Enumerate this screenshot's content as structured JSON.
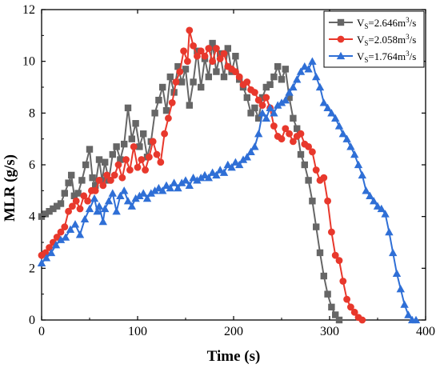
{
  "chart_data": {
    "type": "line",
    "xlabel": "Time (s)",
    "ylabel": "MLR (g/s)",
    "xlim": [
      0,
      400
    ],
    "ylim": [
      0,
      12
    ],
    "x_ticks": [
      "0",
      "100",
      "200",
      "300",
      "400"
    ],
    "y_ticks": [
      "0",
      "2",
      "4",
      "6",
      "8",
      "10",
      "12"
    ],
    "grid": false,
    "legend_position": "top-right",
    "series": [
      {
        "name": "Vs=2.646m³/s",
        "legend": {
          "main": "V",
          "sub": "S",
          "rest": "=2.646m",
          "sup": "3",
          "tail": "/s"
        },
        "color": "#666666",
        "marker": "square",
        "points": [
          [
            0,
            4.0
          ],
          [
            4,
            4.1
          ],
          [
            8,
            4.2
          ],
          [
            12,
            4.3
          ],
          [
            16,
            4.4
          ],
          [
            20,
            4.5
          ],
          [
            24,
            4.9
          ],
          [
            28,
            5.3
          ],
          [
            31,
            5.6
          ],
          [
            34,
            4.8
          ],
          [
            38,
            4.9
          ],
          [
            42,
            5.4
          ],
          [
            46,
            6.0
          ],
          [
            50,
            6.6
          ],
          [
            53,
            5.5
          ],
          [
            56,
            5.2
          ],
          [
            60,
            6.2
          ],
          [
            63,
            5.4
          ],
          [
            66,
            6.1
          ],
          [
            70,
            5.4
          ],
          [
            74,
            6.4
          ],
          [
            78,
            6.7
          ],
          [
            82,
            6.2
          ],
          [
            86,
            6.8
          ],
          [
            90,
            8.2
          ],
          [
            94,
            7.0
          ],
          [
            98,
            7.6
          ],
          [
            102,
            6.7
          ],
          [
            106,
            7.2
          ],
          [
            110,
            6.3
          ],
          [
            114,
            6.9
          ],
          [
            118,
            8.0
          ],
          [
            122,
            8.5
          ],
          [
            126,
            9.0
          ],
          [
            130,
            8.1
          ],
          [
            134,
            9.4
          ],
          [
            138,
            8.8
          ],
          [
            142,
            9.8
          ],
          [
            146,
            9.2
          ],
          [
            150,
            9.7
          ],
          [
            154,
            8.3
          ],
          [
            158,
            9.2
          ],
          [
            162,
            10.4
          ],
          [
            166,
            9.0
          ],
          [
            170,
            10.1
          ],
          [
            174,
            9.4
          ],
          [
            178,
            10.7
          ],
          [
            182,
            9.6
          ],
          [
            186,
            10.3
          ],
          [
            190,
            9.4
          ],
          [
            194,
            10.5
          ],
          [
            198,
            9.6
          ],
          [
            202,
            10.2
          ],
          [
            206,
            9.3
          ],
          [
            210,
            9.0
          ],
          [
            214,
            8.6
          ],
          [
            218,
            8.0
          ],
          [
            222,
            8.2
          ],
          [
            226,
            7.8
          ],
          [
            230,
            8.6
          ],
          [
            234,
            9.0
          ],
          [
            238,
            9.1
          ],
          [
            242,
            9.4
          ],
          [
            246,
            9.8
          ],
          [
            250,
            9.3
          ],
          [
            254,
            9.7
          ],
          [
            258,
            8.6
          ],
          [
            262,
            7.8
          ],
          [
            266,
            7.4
          ],
          [
            270,
            6.4
          ],
          [
            274,
            6.0
          ],
          [
            278,
            5.4
          ],
          [
            282,
            4.6
          ],
          [
            286,
            3.6
          ],
          [
            290,
            2.6
          ],
          [
            294,
            1.7
          ],
          [
            298,
            1.0
          ],
          [
            302,
            0.5
          ],
          [
            306,
            0.2
          ],
          [
            310,
            0.0
          ]
        ]
      },
      {
        "name": "Vs=2.058m³/s",
        "legend": {
          "main": "V",
          "sub": "S",
          "rest": "=2.058m",
          "sup": "3",
          "tail": "/s"
        },
        "color": "#e8382c",
        "marker": "circle",
        "points": [
          [
            0,
            2.5
          ],
          [
            4,
            2.6
          ],
          [
            8,
            2.8
          ],
          [
            12,
            3.0
          ],
          [
            16,
            3.2
          ],
          [
            20,
            3.4
          ],
          [
            24,
            3.6
          ],
          [
            28,
            4.2
          ],
          [
            32,
            4.4
          ],
          [
            36,
            4.6
          ],
          [
            40,
            4.3
          ],
          [
            44,
            4.8
          ],
          [
            48,
            4.6
          ],
          [
            52,
            5.0
          ],
          [
            56,
            5.0
          ],
          [
            60,
            5.4
          ],
          [
            64,
            5.2
          ],
          [
            68,
            5.6
          ],
          [
            72,
            5.4
          ],
          [
            76,
            5.6
          ],
          [
            80,
            6.0
          ],
          [
            84,
            5.5
          ],
          [
            88,
            6.2
          ],
          [
            92,
            5.8
          ],
          [
            96,
            6.7
          ],
          [
            100,
            5.9
          ],
          [
            104,
            6.2
          ],
          [
            108,
            5.8
          ],
          [
            112,
            6.3
          ],
          [
            116,
            6.9
          ],
          [
            120,
            6.4
          ],
          [
            124,
            6.1
          ],
          [
            128,
            7.2
          ],
          [
            132,
            7.8
          ],
          [
            136,
            8.4
          ],
          [
            140,
            9.2
          ],
          [
            144,
            9.6
          ],
          [
            148,
            10.4
          ],
          [
            152,
            10.0
          ],
          [
            154,
            11.2
          ],
          [
            158,
            10.6
          ],
          [
            162,
            10.2
          ],
          [
            166,
            10.4
          ],
          [
            170,
            10.2
          ],
          [
            174,
            10.5
          ],
          [
            178,
            10.0
          ],
          [
            182,
            10.5
          ],
          [
            186,
            10.1
          ],
          [
            190,
            10.3
          ],
          [
            194,
            9.8
          ],
          [
            198,
            9.7
          ],
          [
            202,
            9.6
          ],
          [
            206,
            9.4
          ],
          [
            210,
            9.1
          ],
          [
            214,
            9.2
          ],
          [
            218,
            8.9
          ],
          [
            222,
            8.8
          ],
          [
            226,
            8.5
          ],
          [
            230,
            8.3
          ],
          [
            234,
            8.6
          ],
          [
            238,
            8.2
          ],
          [
            242,
            7.5
          ],
          [
            246,
            7.1
          ],
          [
            250,
            7.0
          ],
          [
            254,
            7.4
          ],
          [
            258,
            7.2
          ],
          [
            262,
            6.9
          ],
          [
            266,
            7.1
          ],
          [
            270,
            7.2
          ],
          [
            274,
            6.8
          ],
          [
            278,
            6.7
          ],
          [
            282,
            6.5
          ],
          [
            286,
            5.8
          ],
          [
            290,
            5.4
          ],
          [
            294,
            5.5
          ],
          [
            298,
            4.6
          ],
          [
            302,
            3.4
          ],
          [
            306,
            2.5
          ],
          [
            310,
            2.3
          ],
          [
            314,
            1.5
          ],
          [
            318,
            0.8
          ],
          [
            322,
            0.5
          ],
          [
            326,
            0.3
          ],
          [
            330,
            0.1
          ],
          [
            334,
            0.0
          ]
        ]
      },
      {
        "name": "Vs=1.764m³/s",
        "legend": {
          "main": "V",
          "sub": "S",
          "rest": "=1.764m",
          "sup": "3",
          "tail": "/s"
        },
        "color": "#2f6fd6",
        "marker": "triangle",
        "points": [
          [
            0,
            2.2
          ],
          [
            5,
            2.4
          ],
          [
            10,
            2.6
          ],
          [
            15,
            2.9
          ],
          [
            20,
            3.1
          ],
          [
            25,
            3.2
          ],
          [
            30,
            3.5
          ],
          [
            35,
            3.7
          ],
          [
            40,
            3.3
          ],
          [
            45,
            3.9
          ],
          [
            50,
            4.3
          ],
          [
            55,
            4.7
          ],
          [
            58,
            4.2
          ],
          [
            60,
            4.4
          ],
          [
            64,
            3.8
          ],
          [
            66,
            4.3
          ],
          [
            70,
            4.6
          ],
          [
            74,
            4.9
          ],
          [
            78,
            4.2
          ],
          [
            82,
            4.8
          ],
          [
            86,
            5.0
          ],
          [
            90,
            4.6
          ],
          [
            94,
            4.4
          ],
          [
            98,
            4.7
          ],
          [
            102,
            4.8
          ],
          [
            106,
            4.9
          ],
          [
            110,
            4.7
          ],
          [
            114,
            4.9
          ],
          [
            118,
            5.0
          ],
          [
            122,
            5.1
          ],
          [
            126,
            5.0
          ],
          [
            130,
            5.2
          ],
          [
            134,
            5.1
          ],
          [
            138,
            5.3
          ],
          [
            142,
            5.1
          ],
          [
            146,
            5.3
          ],
          [
            150,
            5.4
          ],
          [
            154,
            5.2
          ],
          [
            158,
            5.5
          ],
          [
            162,
            5.4
          ],
          [
            166,
            5.5
          ],
          [
            170,
            5.6
          ],
          [
            174,
            5.5
          ],
          [
            178,
            5.7
          ],
          [
            182,
            5.6
          ],
          [
            186,
            5.8
          ],
          [
            190,
            5.7
          ],
          [
            194,
            6.0
          ],
          [
            198,
            5.9
          ],
          [
            202,
            6.1
          ],
          [
            206,
            6.0
          ],
          [
            210,
            6.2
          ],
          [
            214,
            6.3
          ],
          [
            218,
            6.5
          ],
          [
            222,
            6.7
          ],
          [
            226,
            7.2
          ],
          [
            230,
            8.0
          ],
          [
            234,
            7.8
          ],
          [
            238,
            8.2
          ],
          [
            242,
            8.0
          ],
          [
            246,
            8.3
          ],
          [
            250,
            8.4
          ],
          [
            254,
            8.5
          ],
          [
            258,
            8.8
          ],
          [
            262,
            9.0
          ],
          [
            266,
            9.3
          ],
          [
            270,
            9.6
          ],
          [
            274,
            9.8
          ],
          [
            278,
            9.7
          ],
          [
            282,
            10.0
          ],
          [
            286,
            9.4
          ],
          [
            290,
            9.0
          ],
          [
            294,
            8.4
          ],
          [
            298,
            8.2
          ],
          [
            302,
            8.0
          ],
          [
            306,
            7.8
          ],
          [
            310,
            7.5
          ],
          [
            314,
            7.2
          ],
          [
            318,
            7.0
          ],
          [
            322,
            6.7
          ],
          [
            326,
            6.4
          ],
          [
            330,
            6.0
          ],
          [
            334,
            5.6
          ],
          [
            338,
            5.0
          ],
          [
            342,
            4.8
          ],
          [
            346,
            4.6
          ],
          [
            350,
            4.4
          ],
          [
            354,
            4.3
          ],
          [
            358,
            4.1
          ],
          [
            362,
            3.4
          ],
          [
            366,
            2.6
          ],
          [
            370,
            1.8
          ],
          [
            374,
            1.2
          ],
          [
            378,
            0.6
          ],
          [
            382,
            0.2
          ],
          [
            386,
            0.0
          ],
          [
            390,
            0.0
          ]
        ]
      }
    ]
  }
}
